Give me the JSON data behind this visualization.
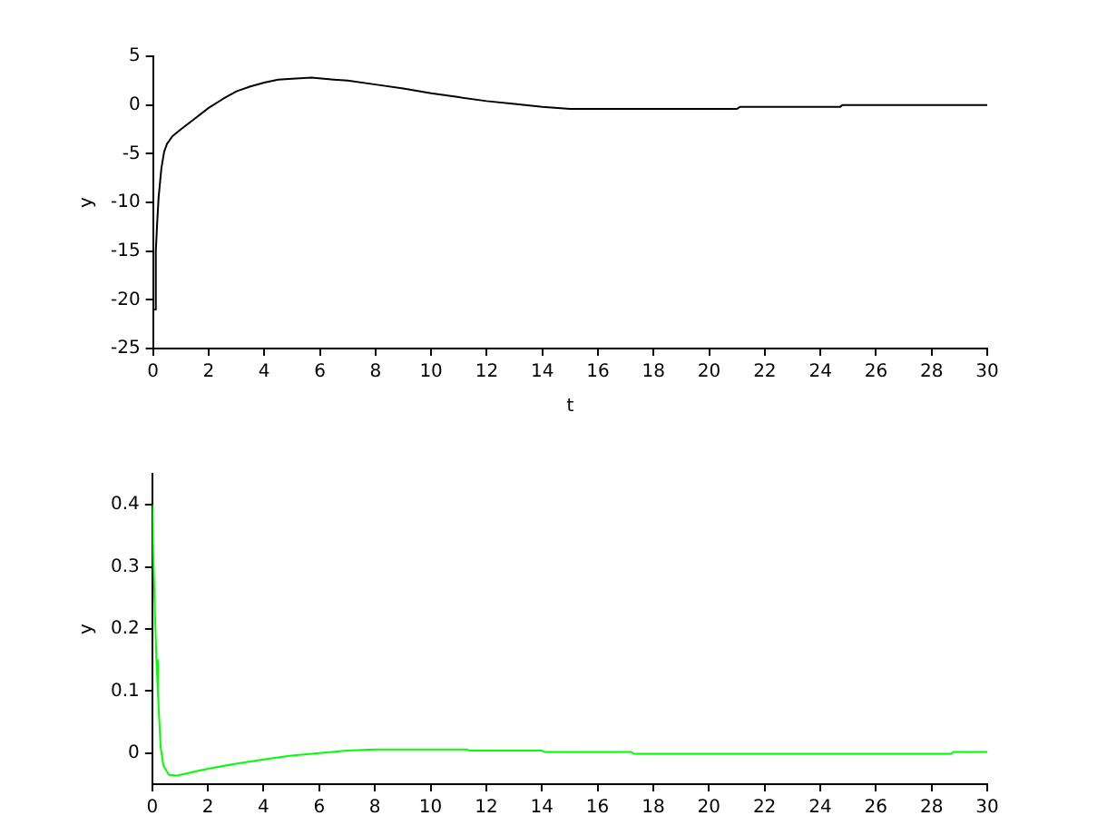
{
  "chart_data": [
    {
      "type": "line",
      "xlabel": "t",
      "ylabel": "y",
      "xlim": [
        0,
        30
      ],
      "ylim": [
        -25,
        5
      ],
      "xticks": [
        0,
        2,
        4,
        6,
        8,
        10,
        12,
        14,
        16,
        18,
        20,
        22,
        24,
        26,
        28,
        30
      ],
      "yticks": [
        -25,
        -20,
        -15,
        -10,
        -5,
        0,
        5
      ],
      "series": [
        {
          "color": "#000000",
          "x": [
            0.05,
            0.1,
            0.15,
            0.2,
            0.3,
            0.4,
            0.5,
            0.7,
            1,
            1.5,
            2,
            2.5,
            3,
            3.5,
            4,
            4.5,
            5,
            5.7,
            6.5,
            7,
            8,
            9,
            10,
            11,
            12,
            13,
            14,
            15,
            18,
            21,
            21.1,
            24.7,
            24.8,
            30
          ],
          "values": [
            -21,
            -15,
            -12,
            -9.5,
            -6.5,
            -4.8,
            -4,
            -3.2,
            -2.5,
            -1.4,
            -0.3,
            0.6,
            1.4,
            1.9,
            2.3,
            2.6,
            2.7,
            2.8,
            2.6,
            2.5,
            2.1,
            1.7,
            1.2,
            0.8,
            0.4,
            0.1,
            -0.2,
            -0.4,
            -0.4,
            -0.4,
            -0.2,
            -0.2,
            0,
            0
          ]
        }
      ]
    },
    {
      "type": "line",
      "ylabel": "y",
      "xlim": [
        0,
        30
      ],
      "ylim": [
        -0.05,
        0.45
      ],
      "xticks": [
        0,
        2,
        4,
        6,
        8,
        10,
        12,
        14,
        16,
        18,
        20,
        22,
        24,
        26,
        28,
        30
      ],
      "yticks": [
        0,
        0.1,
        0.2,
        0.3,
        0.4
      ],
      "series": [
        {
          "color": "#00ff00",
          "x": [
            0,
            0.05,
            0.1,
            0.15,
            0.2,
            0.3,
            0.4,
            0.6,
            0.9,
            1.5,
            2,
            3,
            4,
            5,
            6,
            7,
            8,
            11.3,
            11.4,
            14,
            14.1,
            17.2,
            17.3,
            28.7,
            28.8,
            30
          ],
          "values": [
            0.4,
            0.3,
            0.22,
            0.15,
            0.1,
            0.01,
            -0.02,
            -0.035,
            -0.036,
            -0.03,
            -0.025,
            -0.017,
            -0.01,
            -0.004,
            0,
            0.004,
            0.006,
            0.006,
            0.004,
            0.004,
            0.002,
            0.002,
            -0.001,
            -0.001,
            0.002,
            0.002
          ]
        }
      ]
    }
  ]
}
